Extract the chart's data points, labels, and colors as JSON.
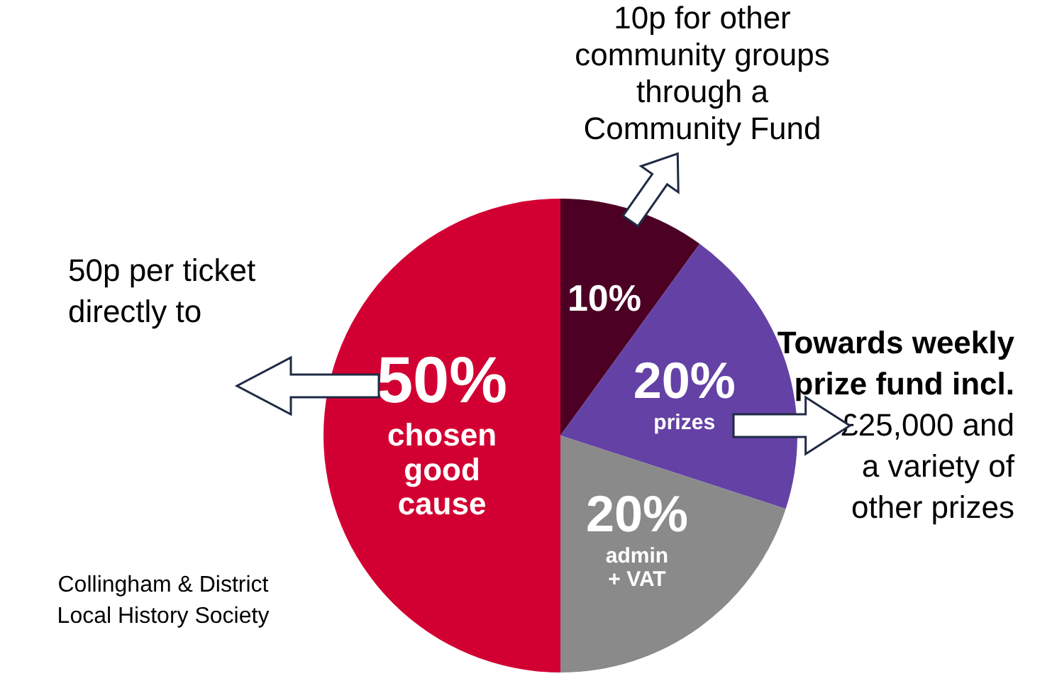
{
  "chart_data": {
    "type": "pie",
    "categories": [
      null,
      "prizes",
      "admin + VAT",
      "chosen good cause"
    ],
    "values": [
      10,
      20,
      20,
      50
    ],
    "colors": [
      "#4b0024",
      "#6441a5",
      "#8a8a8a",
      "#d20032"
    ],
    "value_labels": [
      "10%",
      "20%",
      "20%",
      "50%"
    ],
    "legend": false,
    "annotations": [
      "50p per ticket directly to",
      "Collingham & District Local History Society",
      "10p for other community groups through a Community Fund",
      "Towards weekly prize fund incl.",
      "£25,000 and a variety of other prizes"
    ]
  }
}
